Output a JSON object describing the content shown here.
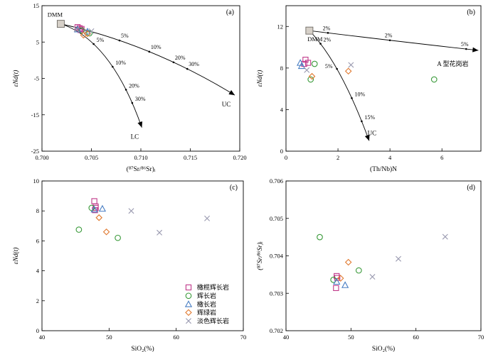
{
  "figure": {
    "legend_items": [
      {
        "key": "olivine_gabbro",
        "label": "橄榄辉长岩",
        "marker": "square",
        "color": "#c0398a"
      },
      {
        "key": "gabbro",
        "label": "辉长岩",
        "marker": "circle",
        "color": "#3a9a3a"
      },
      {
        "key": "troctolite",
        "label": "橄长岩",
        "marker": "triangle",
        "color": "#4a7fc4"
      },
      {
        "key": "diabase",
        "label": "辉绿岩",
        "marker": "diamond",
        "color": "#e0782e"
      },
      {
        "key": "leuco_gabbro",
        "label": "淡色辉长岩",
        "marker": "cross",
        "color": "#9a9ab0"
      }
    ]
  },
  "chart_data": [
    {
      "panel": "(a)",
      "type": "scatter",
      "xlabel": "(⁸⁷Sr/⁸⁶Sr)ᵢ",
      "ylabel": "εNd(t)",
      "xlim": [
        0.7,
        0.72
      ],
      "ylim": [
        -25,
        15
      ],
      "xticks": [
        "0.700",
        "0.705",
        "0.710",
        "0.715",
        "0.720"
      ],
      "yticks": [
        "-25",
        "-15",
        "-5",
        "5",
        "15"
      ],
      "endmember": {
        "label": "DMM",
        "x": 0.7019,
        "y": 10
      },
      "curves": [
        {
          "name": "LC",
          "from": [
            0.7019,
            10
          ],
          "ctrl": [
            0.707,
            5.5
          ],
          "to": [
            0.7101,
            -18.5
          ],
          "label": "LC",
          "ticks": [
            {
              "t": 0.35,
              "label": "5%"
            },
            {
              "t": 0.58,
              "label": "10%"
            },
            {
              "t": 0.76,
              "label": "20%"
            },
            {
              "t": 0.85,
              "label": "30%"
            }
          ]
        },
        {
          "name": "UC",
          "from": [
            0.7019,
            10
          ],
          "ctrl": [
            0.711,
            4.5
          ],
          "to": [
            0.7195,
            -9.6
          ],
          "label": "UC",
          "ticks": [
            {
              "t": 0.33,
              "label": "5%"
            },
            {
              "t": 0.5,
              "label": "10%"
            },
            {
              "t": 0.64,
              "label": "20%"
            },
            {
              "t": 0.72,
              "label": "30%"
            }
          ]
        }
      ],
      "points": {
        "olivine_gabbro": [
          [
            0.7036,
            9.1
          ],
          [
            0.7038,
            8.8
          ],
          [
            0.7039,
            8.3
          ],
          [
            0.704,
            8.6
          ]
        ],
        "gabbro": [
          [
            0.704,
            8.2
          ],
          [
            0.7048,
            7.4
          ]
        ],
        "troctolite": [
          [
            0.7036,
            8.5
          ],
          [
            0.7046,
            7.9
          ]
        ],
        "diabase": [
          [
            0.7042,
            6.9
          ],
          [
            0.7046,
            7.3
          ]
        ],
        "leuco_gabbro": [
          [
            0.7035,
            8.5
          ],
          [
            0.705,
            8.0
          ]
        ]
      }
    },
    {
      "panel": "(b)",
      "type": "scatter",
      "xlabel": "(Th/Nb)N",
      "ylabel": "εNd(t)",
      "xlim": [
        0,
        7.5
      ],
      "ylim": [
        0,
        14
      ],
      "xticks": [
        "0",
        "2",
        "4",
        "6"
      ],
      "yticks": [
        "0",
        "4",
        "8",
        "12"
      ],
      "endmember": {
        "label": "DMM",
        "x": 0.9,
        "y": 11.6
      },
      "curves": [
        {
          "name": "UC",
          "from": [
            0.9,
            11.6
          ],
          "ctrl": [
            2.1,
            8.5
          ],
          "to": [
            3.2,
            1.0
          ],
          "label": "UC",
          "ticks": [
            {
              "t": 0.18,
              "label": "2%"
            },
            {
              "t": 0.45,
              "label": "5%"
            },
            {
              "t": 0.7,
              "label": "10%"
            },
            {
              "t": 0.87,
              "label": "15%"
            }
          ]
        },
        {
          "name": "A-type granite",
          "from": [
            0.9,
            11.6
          ],
          "ctrl": [
            4.5,
            10.5
          ],
          "to": [
            7.4,
            9.7
          ],
          "label": "A 型花岗岩",
          "ticks": [
            {
              "t": 0.1,
              "label": "2%"
            },
            {
              "t": 0.45,
              "label": "2%"
            },
            {
              "t": 0.92,
              "label": "5%"
            }
          ]
        }
      ],
      "points": {
        "olivine_gabbro": [
          [
            0.75,
            8.8
          ],
          [
            0.7,
            8.4
          ],
          [
            0.85,
            8.5
          ]
        ],
        "gabbro": [
          [
            0.95,
            6.9
          ],
          [
            1.1,
            8.4
          ],
          [
            5.7,
            6.9
          ]
        ],
        "troctolite": [
          [
            0.6,
            8.2
          ],
          [
            0.55,
            8.5
          ]
        ],
        "diabase": [
          [
            2.4,
            7.7
          ],
          [
            1.0,
            7.2
          ]
        ],
        "leuco_gabbro": [
          [
            0.8,
            7.8
          ],
          [
            2.5,
            8.3
          ]
        ]
      }
    },
    {
      "panel": "(c)",
      "type": "scatter",
      "xlabel": "SiO₂(%)",
      "ylabel": "εNd(t)",
      "xlim": [
        40,
        70
      ],
      "ylim": [
        0,
        10
      ],
      "xticks": [
        "40",
        "50",
        "60",
        "70"
      ],
      "yticks": [
        "0",
        "2",
        "4",
        "6",
        "8",
        "10"
      ],
      "points": {
        "olivine_gabbro": [
          [
            47.8,
            8.65
          ],
          [
            48.0,
            8.3
          ],
          [
            47.9,
            8.05
          ],
          [
            48.0,
            8.2
          ]
        ],
        "gabbro": [
          [
            45.5,
            6.75
          ],
          [
            47.4,
            8.2
          ],
          [
            51.3,
            6.2
          ]
        ],
        "troctolite": [
          [
            47.8,
            8.1
          ],
          [
            49.0,
            8.15
          ]
        ],
        "diabase": [
          [
            48.5,
            7.55
          ],
          [
            49.6,
            6.6
          ]
        ],
        "leuco_gabbro": [
          [
            53.3,
            8.0
          ],
          [
            57.5,
            6.55
          ],
          [
            64.6,
            7.5
          ]
        ]
      }
    },
    {
      "panel": "(d)",
      "type": "scatter",
      "xlabel": "SiO₂(%)",
      "ylabel": "(⁸⁷Sr/⁸⁶Sr)ᵢ",
      "xlim": [
        40,
        70
      ],
      "ylim": [
        0.702,
        0.706
      ],
      "xticks": [
        "40",
        "50",
        "60",
        "70"
      ],
      "yticks": [
        "0.702",
        "0.703",
        "0.704",
        "0.705",
        "0.706"
      ],
      "points": {
        "olivine_gabbro": [
          [
            47.8,
            0.70346
          ],
          [
            47.9,
            0.70341
          ],
          [
            47.7,
            0.70314
          ]
        ],
        "gabbro": [
          [
            45.2,
            0.7045
          ],
          [
            47.3,
            0.70336
          ],
          [
            51.2,
            0.70361
          ]
        ],
        "troctolite": [
          [
            47.8,
            0.70331
          ],
          [
            49.1,
            0.70322
          ]
        ],
        "diabase": [
          [
            48.4,
            0.7034
          ],
          [
            49.6,
            0.70383
          ]
        ],
        "leuco_gabbro": [
          [
            53.3,
            0.70344
          ],
          [
            57.3,
            0.70392
          ],
          [
            64.5,
            0.70451
          ]
        ]
      }
    }
  ]
}
